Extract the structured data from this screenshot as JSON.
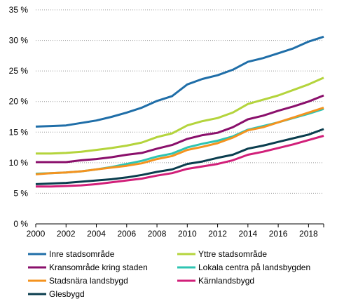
{
  "chart_data": {
    "type": "line",
    "title": "",
    "xlabel": "",
    "ylabel": "",
    "x": [
      2000,
      2001,
      2002,
      2003,
      2004,
      2005,
      2006,
      2007,
      2008,
      2009,
      2010,
      2011,
      2012,
      2013,
      2014,
      2015,
      2016,
      2017,
      2018,
      2019
    ],
    "xlim": [
      2000,
      2019
    ],
    "ylim": [
      0,
      35
    ],
    "x_ticks": [
      {
        "value": 2000,
        "label": "2000"
      },
      {
        "value": 2002,
        "label": "2002"
      },
      {
        "value": 2004,
        "label": "2004"
      },
      {
        "value": 2006,
        "label": "2006"
      },
      {
        "value": 2008,
        "label": "2008"
      },
      {
        "value": 2010,
        "label": "2010"
      },
      {
        "value": 2012,
        "label": "2012"
      },
      {
        "value": 2014,
        "label": "2014"
      },
      {
        "value": 2016,
        "label": "2016"
      },
      {
        "value": 2018,
        "label": "2018"
      }
    ],
    "y_ticks": [
      {
        "value": 0,
        "label": "0 %"
      },
      {
        "value": 5,
        "label": "5 %"
      },
      {
        "value": 10,
        "label": "10 %"
      },
      {
        "value": 15,
        "label": "15 %"
      },
      {
        "value": 20,
        "label": "20 %"
      },
      {
        "value": 25,
        "label": "25 %"
      },
      {
        "value": 30,
        "label": "30 %"
      },
      {
        "value": 35,
        "label": "35 %"
      }
    ],
    "grid": "horizontal-dotted",
    "legend_position": "bottom",
    "series": [
      {
        "name": "Inre stadsområde",
        "color": "#1f6ea8",
        "values": [
          15.9,
          16.0,
          16.1,
          16.5,
          16.9,
          17.5,
          18.2,
          19.0,
          20.1,
          20.9,
          22.8,
          23.7,
          24.3,
          25.2,
          26.5,
          27.1,
          27.9,
          28.7,
          29.8,
          30.6
        ]
      },
      {
        "name": "Yttre stadsområde",
        "color": "#b4d43c",
        "values": [
          11.5,
          11.5,
          11.6,
          11.8,
          12.1,
          12.4,
          12.8,
          13.3,
          14.2,
          14.8,
          16.1,
          16.8,
          17.3,
          18.2,
          19.6,
          20.3,
          21.0,
          21.9,
          22.8,
          23.9
        ]
      },
      {
        "name": "Kransområde kring staden",
        "color": "#8a0f6b",
        "values": [
          10.1,
          10.1,
          10.1,
          10.4,
          10.6,
          10.9,
          11.3,
          11.6,
          12.3,
          12.9,
          13.9,
          14.5,
          14.9,
          15.8,
          17.1,
          17.7,
          18.5,
          19.2,
          20.0,
          21.0
        ]
      },
      {
        "name": "Lokala centra på landsbygden",
        "color": "#2ec4b2",
        "values": [
          8.2,
          8.3,
          8.4,
          8.6,
          8.9,
          9.3,
          9.8,
          10.3,
          11.0,
          11.5,
          12.5,
          13.1,
          13.6,
          14.3,
          15.4,
          16.0,
          16.6,
          17.3,
          18.0,
          18.8
        ]
      },
      {
        "name": "Stadsnära landsbygd",
        "color": "#f4931f",
        "values": [
          8.1,
          8.3,
          8.4,
          8.6,
          8.9,
          9.2,
          9.5,
          9.9,
          10.6,
          11.1,
          12.1,
          12.6,
          13.2,
          14.1,
          15.3,
          15.8,
          16.6,
          17.4,
          18.2,
          19.0
        ]
      },
      {
        "name": "Kärnlandsbygd",
        "color": "#d11f79",
        "values": [
          6.1,
          6.1,
          6.2,
          6.3,
          6.5,
          6.8,
          7.1,
          7.4,
          7.9,
          8.3,
          9.0,
          9.4,
          9.8,
          10.4,
          11.3,
          11.8,
          12.4,
          13.0,
          13.7,
          14.4
        ]
      },
      {
        "name": "Glesbygd",
        "color": "#0a3d4e",
        "values": [
          6.5,
          6.6,
          6.7,
          6.9,
          7.1,
          7.3,
          7.6,
          8.0,
          8.5,
          8.9,
          9.8,
          10.2,
          10.8,
          11.3,
          12.3,
          12.8,
          13.4,
          14.0,
          14.6,
          15.5
        ]
      }
    ]
  }
}
